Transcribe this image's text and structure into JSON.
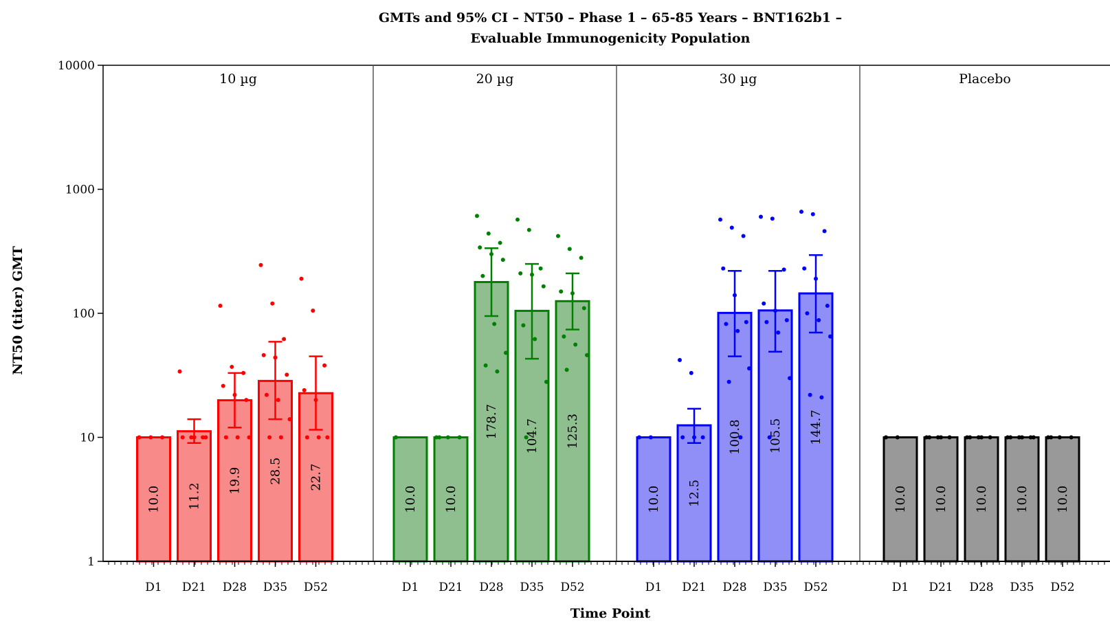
{
  "chart_data": {
    "type": "bar",
    "title_lines": [
      "GMTs and 95% CI – NT50 – Phase 1 – 65-85 Years – BNT162b1 –",
      "Evaluable Immunogenicity Population"
    ],
    "xlabel": "Time Point",
    "ylabel": "NT50 (titer) GMT",
    "y_scale": "log",
    "ylim": [
      1,
      10000
    ],
    "y_ticks": [
      {
        "value": 1,
        "label": "1"
      },
      {
        "value": 10,
        "label": "10"
      },
      {
        "value": 100,
        "label": "100"
      },
      {
        "value": 1000,
        "label": "1000"
      },
      {
        "value": 10000,
        "label": "10000"
      }
    ],
    "categories": [
      "D1",
      "D21",
      "D28",
      "D35",
      "D52"
    ],
    "panels": [
      {
        "name": "10 µg",
        "color": "#ff0000",
        "fill": "#f88a8a",
        "gmt": [
          10.0,
          11.2,
          19.9,
          28.5,
          22.7
        ],
        "gmt_labels": [
          "10.0",
          "11.2",
          "19.9",
          "28.5",
          "22.7"
        ],
        "ci_low": [
          10,
          9,
          12,
          14,
          11.5
        ],
        "ci_high": [
          10,
          14,
          33,
          59,
          45
        ],
        "points": [
          [
            10,
            10,
            10
          ],
          [
            34,
            10,
            10,
            10,
            10,
            10
          ],
          [
            115,
            37,
            33,
            26,
            22,
            20,
            10,
            10,
            10
          ],
          [
            245,
            120,
            62,
            46,
            44,
            32,
            22,
            20,
            14,
            10,
            10
          ],
          [
            190,
            105,
            38,
            24,
            20,
            10,
            10,
            10
          ]
        ]
      },
      {
        "name": "20 µg",
        "color": "#008000",
        "fill": "#8fbf8f",
        "gmt": [
          10.0,
          10.0,
          178.7,
          104.7,
          125.3
        ],
        "gmt_labels": [
          "10.0",
          "10.0",
          "178.7",
          "104.7",
          "125.3"
        ],
        "ci_low": [
          10,
          10,
          95,
          43,
          74
        ],
        "ci_high": [
          10,
          10,
          335,
          250,
          210
        ],
        "points": [
          [
            10
          ],
          [
            10,
            10,
            10,
            10
          ],
          [
            610,
            440,
            370,
            340,
            300,
            270,
            200,
            82,
            48,
            38,
            34
          ],
          [
            570,
            470,
            230,
            210,
            205,
            165,
            80,
            62,
            28,
            10
          ],
          [
            420,
            330,
            280,
            150,
            145,
            110,
            65,
            56,
            46,
            35
          ]
        ]
      },
      {
        "name": "30 µg",
        "color": "#0000ff",
        "fill": "#8f8ff7",
        "gmt": [
          10.0,
          12.5,
          100.8,
          105.5,
          144.7
        ],
        "gmt_labels": [
          "10.0",
          "12.5",
          "100.8",
          "105.5",
          "144.7"
        ],
        "ci_low": [
          10,
          9,
          45,
          49,
          70
        ],
        "ci_high": [
          10,
          17,
          220,
          220,
          295
        ],
        "points": [
          [
            10,
            10
          ],
          [
            42,
            33,
            10,
            10,
            10
          ],
          [
            570,
            490,
            420,
            230,
            140,
            85,
            82,
            72,
            36,
            28,
            10
          ],
          [
            600,
            580,
            225,
            120,
            105,
            88,
            85,
            70,
            30,
            10
          ],
          [
            660,
            630,
            460,
            230,
            190,
            115,
            100,
            88,
            65,
            22,
            21
          ]
        ]
      },
      {
        "name": "Placebo",
        "color": "#000000",
        "fill": "#999999",
        "gmt": [
          10.0,
          10.0,
          10.0,
          10.0,
          10.0
        ],
        "gmt_labels": [
          "10.0",
          "10.0",
          "10.0",
          "10.0",
          "10.0"
        ],
        "ci_low": [
          10,
          10,
          10,
          10,
          10
        ],
        "ci_high": [
          10,
          10,
          10,
          10,
          10
        ],
        "points": [
          [
            10,
            10
          ],
          [
            10,
            10,
            10,
            10,
            10
          ],
          [
            10,
            10,
            10,
            10,
            10
          ],
          [
            10,
            10,
            10,
            10,
            10,
            10
          ],
          [
            10,
            10,
            10,
            10
          ]
        ]
      }
    ]
  }
}
